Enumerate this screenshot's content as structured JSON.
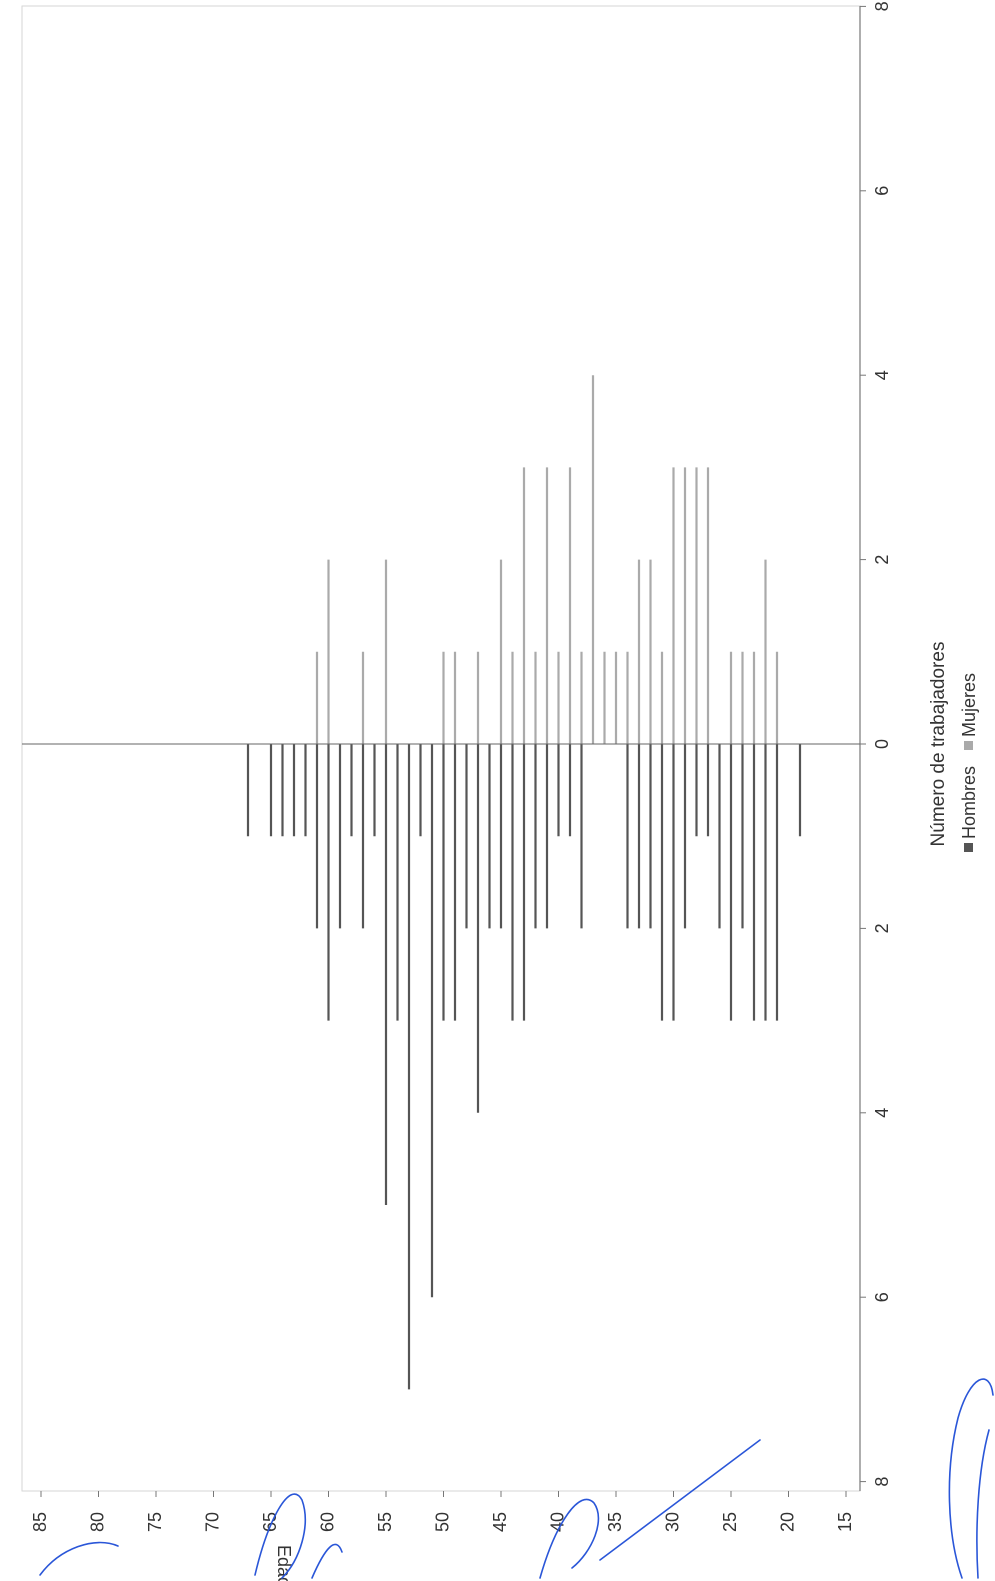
{
  "chart_data": {
    "type": "bar",
    "orientation": "horizontal-population-pyramid",
    "title": "",
    "xlabel": "Número de trabajadores",
    "ylabel": "Edad",
    "xlim": [
      -8,
      8
    ],
    "ylim": [
      15,
      85
    ],
    "x_ticks": [
      "8",
      "6",
      "4",
      "2",
      "0",
      "2",
      "4",
      "6",
      "8"
    ],
    "y_ticks": [
      15,
      20,
      25,
      30,
      35,
      40,
      45,
      50,
      55,
      60,
      65,
      70,
      75,
      80,
      85
    ],
    "legend": {
      "placement": "bottom",
      "entries": [
        "Hombres",
        "Mujeres"
      ]
    },
    "grid": false,
    "ages": [
      19,
      20,
      21,
      22,
      23,
      24,
      25,
      26,
      27,
      28,
      29,
      30,
      31,
      32,
      33,
      34,
      35,
      36,
      37,
      38,
      39,
      40,
      41,
      42,
      43,
      44,
      45,
      46,
      47,
      48,
      49,
      50,
      51,
      52,
      53,
      54,
      55,
      56,
      57,
      58,
      59,
      60,
      61,
      62,
      63,
      64,
      65,
      67
    ],
    "series": [
      {
        "name": "Hombres",
        "color": "#555555",
        "values": [
          1,
          0,
          3,
          3,
          3,
          2,
          3,
          2,
          1,
          1,
          2,
          3,
          3,
          2,
          2,
          2,
          0,
          0,
          0,
          2,
          1,
          1,
          2,
          2,
          3,
          3,
          2,
          2,
          4,
          2,
          3,
          3,
          6,
          1,
          7,
          3,
          5,
          1,
          2,
          1,
          2,
          3,
          2,
          1,
          1,
          1,
          1,
          1
        ]
      },
      {
        "name": "Mujeres",
        "color": "#aaaaaa",
        "values": [
          0,
          0,
          1,
          2,
          1,
          1,
          1,
          0,
          3,
          3,
          3,
          3,
          1,
          2,
          2,
          1,
          1,
          1,
          4,
          1,
          3,
          1,
          3,
          1,
          3,
          1,
          2,
          0,
          1,
          0,
          1,
          1,
          0,
          0,
          0,
          0,
          2,
          0,
          1,
          0,
          0,
          2,
          1,
          0,
          0,
          0,
          0,
          0
        ]
      }
    ]
  },
  "signatures": [
    "blue-handwritten-signature-left",
    "blue-handwritten-signature-right"
  ]
}
